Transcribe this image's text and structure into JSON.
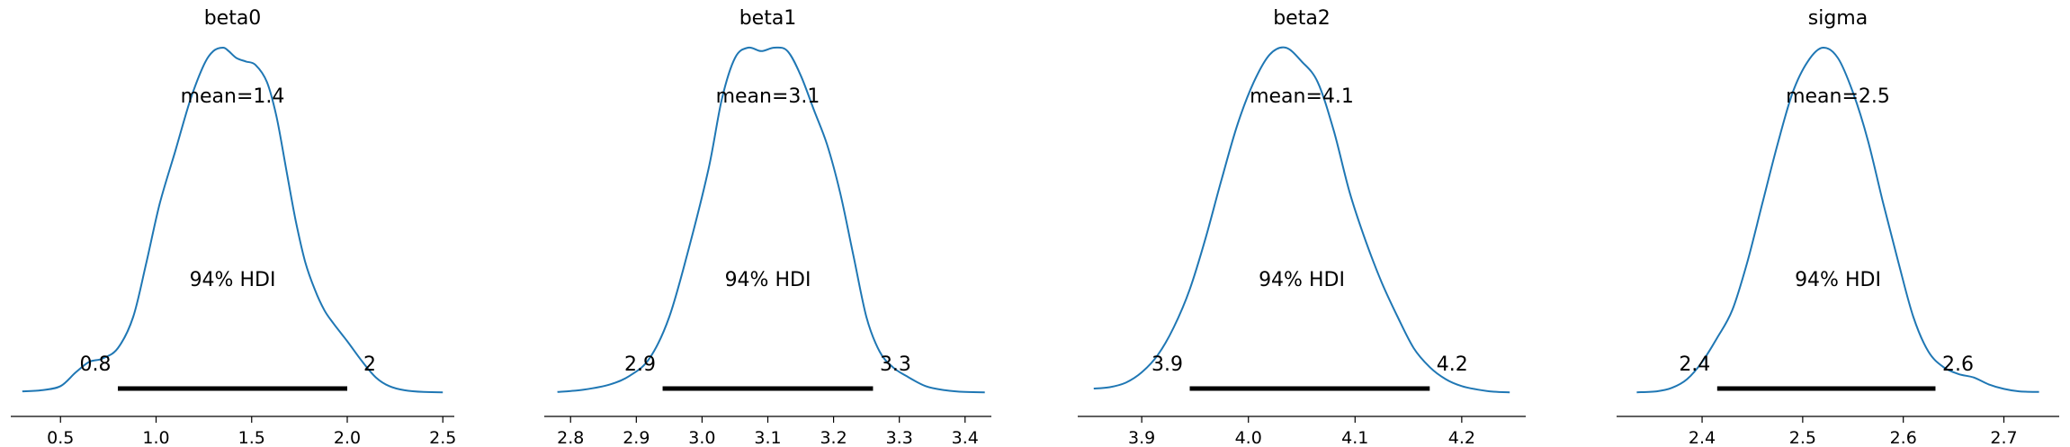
{
  "figure": {
    "colors": {
      "density": "#1f77b4",
      "hdi": "#000000",
      "axis": "#000000",
      "text": "#000000"
    }
  },
  "chart_data": [
    {
      "type": "area",
      "title": "beta0",
      "mean_label": "mean=1.4",
      "hdi_label": "94% HDI",
      "hdi": [
        0.8,
        2.0
      ],
      "hdi_labels": [
        "0.8",
        "2"
      ],
      "xlim": [
        0.24,
        2.56
      ],
      "xticks": [
        0.5,
        1.0,
        1.5,
        2.0,
        2.5
      ],
      "xtick_labels": [
        "0.5",
        "1.0",
        "1.5",
        "2.0",
        "2.5"
      ],
      "density": {
        "x": [
          0.3,
          0.4,
          0.5,
          0.58,
          0.65,
          0.72,
          0.8,
          0.88,
          0.95,
          1.02,
          1.1,
          1.18,
          1.25,
          1.3,
          1.35,
          1.38,
          1.42,
          1.47,
          1.52,
          1.58,
          1.63,
          1.68,
          1.73,
          1.78,
          1.83,
          1.88,
          1.93,
          2.0,
          2.08,
          2.15,
          2.22,
          2.3,
          2.4,
          2.5
        ],
        "y": [
          0.005,
          0.008,
          0.02,
          0.06,
          0.09,
          0.1,
          0.13,
          0.22,
          0.38,
          0.55,
          0.7,
          0.85,
          0.95,
          0.99,
          1.0,
          0.99,
          0.97,
          0.96,
          0.95,
          0.9,
          0.8,
          0.65,
          0.5,
          0.38,
          0.3,
          0.24,
          0.2,
          0.15,
          0.09,
          0.045,
          0.02,
          0.008,
          0.003,
          0.002
        ]
      }
    },
    {
      "type": "area",
      "title": "beta1",
      "mean_label": "mean=3.1",
      "hdi_label": "94% HDI",
      "hdi": [
        2.94,
        3.26
      ],
      "hdi_labels": [
        "2.9",
        "3.3"
      ],
      "xlim": [
        2.76,
        3.44
      ],
      "xticks": [
        2.8,
        2.9,
        3.0,
        3.1,
        3.2,
        3.3,
        3.4
      ],
      "xtick_labels": [
        "2.8",
        "2.9",
        "3.0",
        "3.1",
        "3.2",
        "3.3",
        "3.4"
      ],
      "density": {
        "x": [
          2.78,
          2.82,
          2.86,
          2.89,
          2.92,
          2.95,
          2.98,
          3.01,
          3.03,
          3.05,
          3.07,
          3.09,
          3.11,
          3.13,
          3.15,
          3.17,
          3.19,
          3.21,
          3.23,
          3.25,
          3.27,
          3.29,
          3.31,
          3.34,
          3.37,
          3.4,
          3.43
        ],
        "y": [
          0.003,
          0.01,
          0.025,
          0.05,
          0.1,
          0.22,
          0.42,
          0.65,
          0.85,
          0.97,
          1.0,
          0.99,
          1.0,
          0.99,
          0.92,
          0.82,
          0.72,
          0.58,
          0.4,
          0.22,
          0.12,
          0.075,
          0.05,
          0.02,
          0.008,
          0.003,
          0.002
        ]
      }
    },
    {
      "type": "area",
      "title": "beta2",
      "mean_label": "mean=4.1",
      "hdi_label": "94% HDI",
      "hdi": [
        3.945,
        4.17
      ],
      "hdi_labels": [
        "3.9",
        "4.2"
      ],
      "xlim": [
        3.84,
        4.26
      ],
      "xticks": [
        3.9,
        4.0,
        4.1,
        4.2
      ],
      "xtick_labels": [
        "3.9",
        "4.0",
        "4.1",
        "4.2"
      ],
      "density": {
        "x": [
          3.855,
          3.87,
          3.885,
          3.9,
          3.915,
          3.93,
          3.945,
          3.96,
          3.975,
          3.99,
          4.005,
          4.02,
          4.035,
          4.05,
          4.065,
          4.08,
          4.095,
          4.11,
          4.125,
          4.14,
          4.155,
          4.17,
          4.185,
          4.2,
          4.215,
          4.23,
          4.245
        ],
        "y": [
          0.013,
          0.017,
          0.03,
          0.06,
          0.11,
          0.19,
          0.3,
          0.45,
          0.62,
          0.78,
          0.9,
          0.98,
          1.0,
          0.96,
          0.9,
          0.76,
          0.58,
          0.44,
          0.32,
          0.22,
          0.13,
          0.075,
          0.04,
          0.02,
          0.01,
          0.004,
          0.002
        ]
      }
    },
    {
      "type": "area",
      "title": "sigma",
      "mean_label": "mean=2.5",
      "hdi_label": "94% HDI",
      "hdi": [
        2.415,
        2.632
      ],
      "hdi_labels": [
        "2.4",
        "2.6"
      ],
      "xlim": [
        2.315,
        2.755
      ],
      "xticks": [
        2.4,
        2.5,
        2.6,
        2.7
      ],
      "xtick_labels": [
        "2.4",
        "2.5",
        "2.6",
        "2.7"
      ],
      "density": {
        "x": [
          2.335,
          2.355,
          2.37,
          2.385,
          2.4,
          2.415,
          2.43,
          2.445,
          2.46,
          2.475,
          2.49,
          2.505,
          2.52,
          2.535,
          2.55,
          2.565,
          2.58,
          2.595,
          2.61,
          2.625,
          2.64,
          2.655,
          2.67,
          2.685,
          2.7,
          2.715,
          2.735
        ],
        "y": [
          0.002,
          0.005,
          0.015,
          0.04,
          0.09,
          0.16,
          0.24,
          0.38,
          0.55,
          0.72,
          0.87,
          0.96,
          1.0,
          0.97,
          0.87,
          0.73,
          0.55,
          0.38,
          0.22,
          0.12,
          0.075,
          0.055,
          0.045,
          0.025,
          0.012,
          0.005,
          0.003
        ]
      }
    }
  ]
}
